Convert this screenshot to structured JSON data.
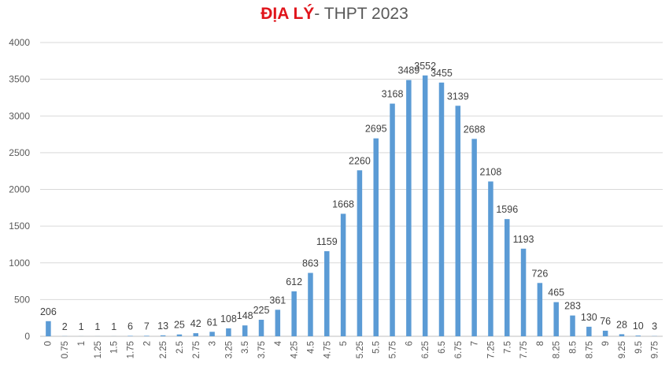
{
  "chart_data": {
    "type": "bar",
    "title_accent": "ĐỊA LÝ",
    "title_rest": "- THPT 2023",
    "xlabel": "",
    "ylabel": "",
    "ylim": [
      0,
      4000
    ],
    "yticks": [
      0,
      500,
      1000,
      1500,
      2000,
      2500,
      3000,
      3500,
      4000
    ],
    "grid": true,
    "legend": "none",
    "bar_color": "#5b9bd5",
    "categories": [
      "0",
      "0.75",
      "1",
      "1.25",
      "1.5",
      "1.75",
      "2",
      "2.25",
      "2.5",
      "2.75",
      "3",
      "3.25",
      "3.5",
      "3.75",
      "4",
      "4.25",
      "4.5",
      "4.75",
      "5",
      "5.25",
      "5.5",
      "5.75",
      "6",
      "6.25",
      "6.5",
      "6.75",
      "7",
      "7.25",
      "7.5",
      "7.75",
      "8",
      "8.25",
      "8.5",
      "8.75",
      "9",
      "9.25",
      "9.5",
      "9.75"
    ],
    "values": [
      206,
      2,
      1,
      1,
      1,
      6,
      7,
      13,
      25,
      42,
      61,
      108,
      148,
      225,
      361,
      612,
      863,
      1159,
      1668,
      2260,
      2695,
      3168,
      3489,
      3552,
      3455,
      3139,
      2688,
      2108,
      1596,
      1193,
      726,
      465,
      283,
      130,
      76,
      28,
      10,
      3
    ]
  }
}
